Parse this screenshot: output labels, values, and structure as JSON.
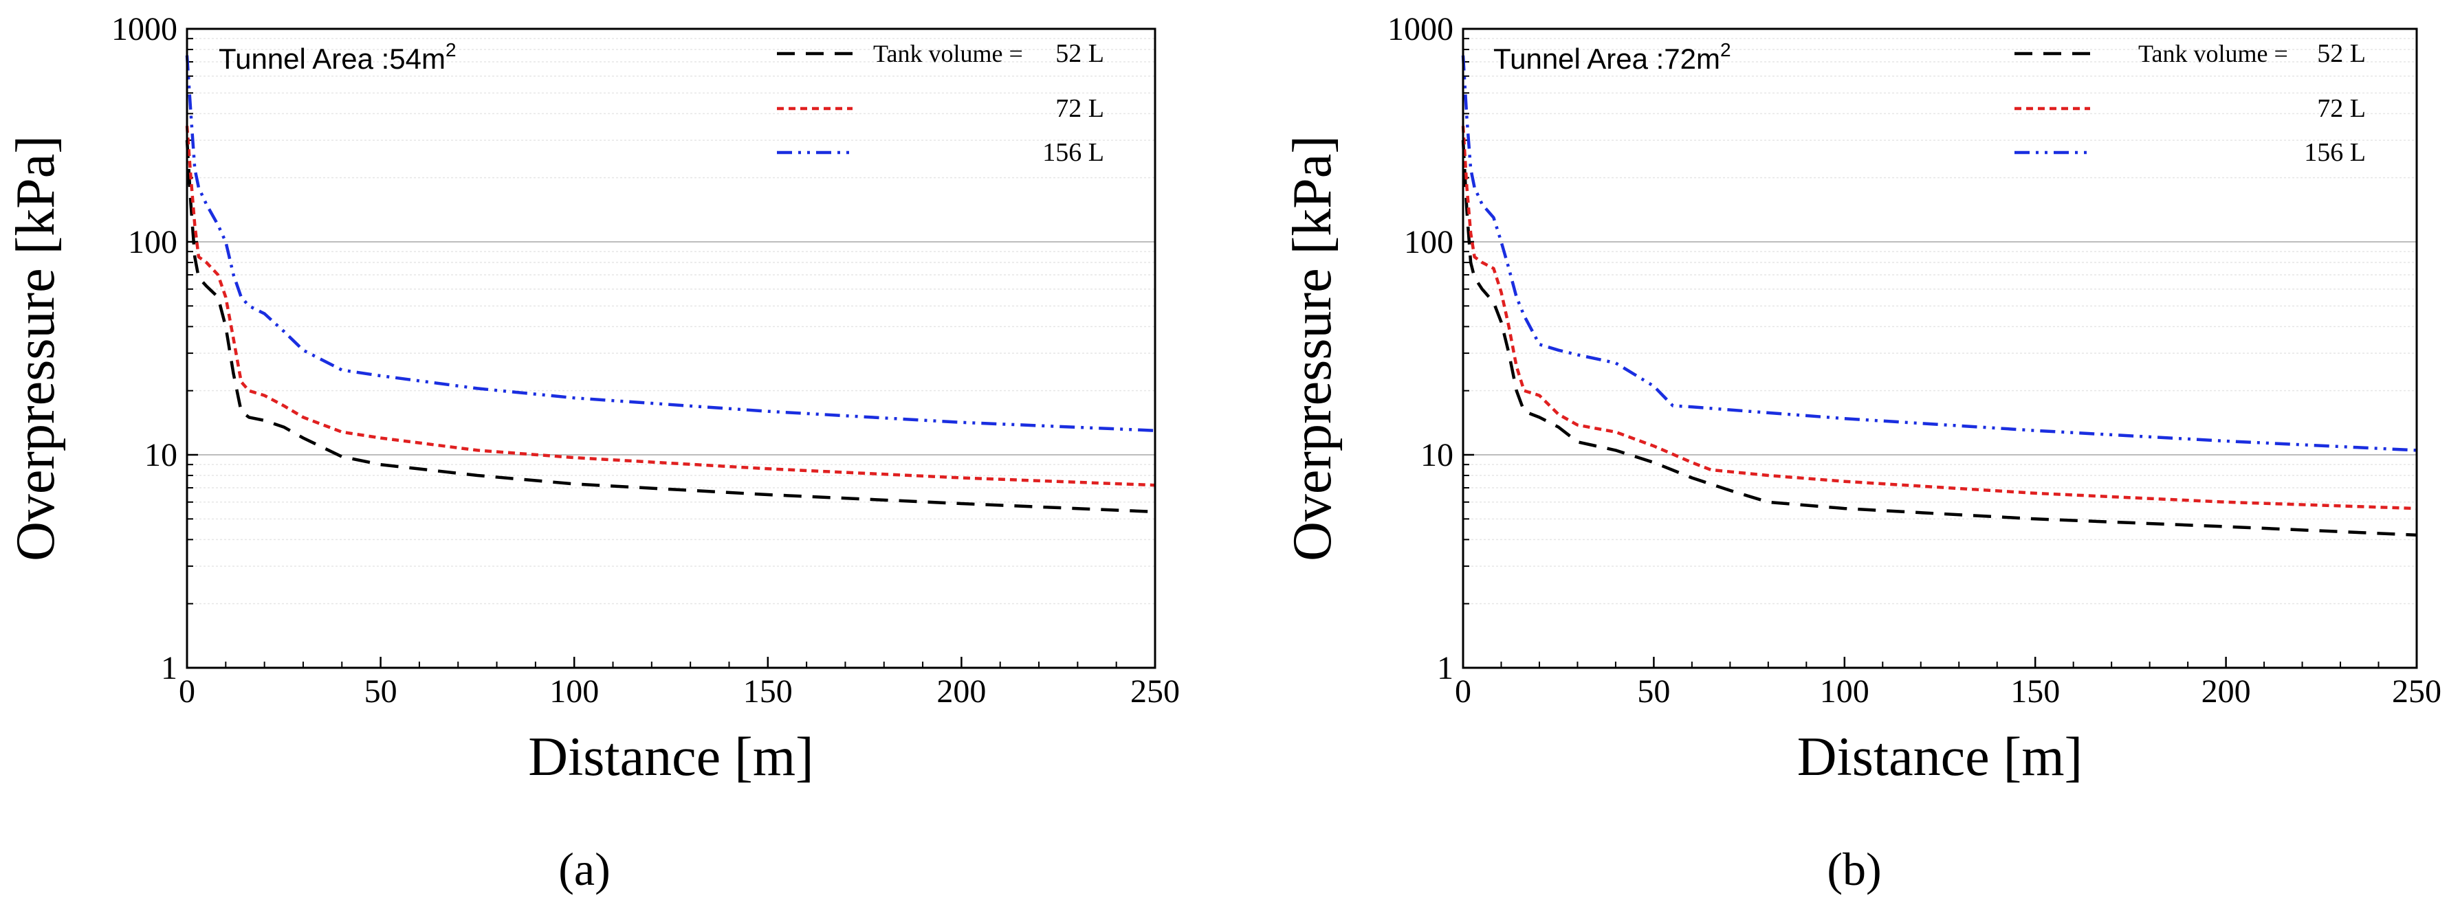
{
  "chart_data": [
    {
      "type": "line",
      "panel_label": "(a)",
      "annotation": {
        "text": "Tunnel Area :54m",
        "sup": "2"
      },
      "xlabel": "Distance [m]",
      "ylabel": "Overpressure [kPa]",
      "xlim": [
        0,
        250
      ],
      "ylim": [
        1,
        1000
      ],
      "yscale": "log",
      "xticks": [
        0,
        50,
        100,
        150,
        200,
        250
      ],
      "xtick_labels": [
        "0",
        "50",
        "100",
        "150",
        "200",
        "250"
      ],
      "yticks": [
        1,
        10,
        100,
        1000
      ],
      "ytick_labels": [
        "1",
        "10",
        "100",
        "1000"
      ],
      "grid": "horizontal",
      "legend_position": "top-right",
      "legend_title": "Tank volume =",
      "series": [
        {
          "name": "52 L",
          "color": "#000000",
          "dash": "dashed",
          "x": [
            0,
            1,
            2,
            3,
            5,
            8,
            10,
            12,
            14,
            16,
            20,
            25,
            30,
            40,
            50,
            75,
            100,
            150,
            200,
            250
          ],
          "y": [
            300,
            150,
            85,
            68,
            62,
            55,
            40,
            24,
            16,
            15,
            14.5,
            13.5,
            12,
            9.8,
            9,
            8,
            7.3,
            6.5,
            5.9,
            5.4
          ]
        },
        {
          "name": "72 L",
          "color": "#e02020",
          "dash": "dotted",
          "x": [
            0,
            1,
            2,
            3,
            5,
            8,
            10,
            12,
            14,
            16,
            20,
            25,
            30,
            40,
            50,
            75,
            100,
            150,
            200,
            250
          ],
          "y": [
            350,
            200,
            120,
            85,
            80,
            70,
            55,
            35,
            22,
            20,
            19,
            17,
            15,
            12.8,
            12,
            10.5,
            9.7,
            8.6,
            7.8,
            7.2
          ]
        },
        {
          "name": "156 L",
          "color": "#1a2ee0",
          "dash": "dashdotdot",
          "x": [
            0,
            1,
            2,
            3,
            5,
            8,
            10,
            12,
            14,
            16,
            20,
            25,
            30,
            40,
            50,
            75,
            100,
            150,
            200,
            250
          ],
          "y": [
            750,
            400,
            220,
            180,
            150,
            120,
            100,
            70,
            55,
            50,
            46,
            38,
            31,
            25,
            23.5,
            20.5,
            18.5,
            16,
            14.2,
            13
          ]
        }
      ]
    },
    {
      "type": "line",
      "panel_label": "(b)",
      "annotation": {
        "text": "Tunnel Area :72m",
        "sup": "2"
      },
      "xlabel": "Distance [m]",
      "ylabel": "Overpressure [kPa]",
      "xlim": [
        0,
        250
      ],
      "ylim": [
        1,
        1000
      ],
      "yscale": "log",
      "xticks": [
        0,
        50,
        100,
        150,
        200,
        250
      ],
      "xtick_labels": [
        "0",
        "50",
        "100",
        "150",
        "200",
        "250"
      ],
      "yticks": [
        1,
        10,
        100,
        1000
      ],
      "ytick_labels": [
        "1",
        "10",
        "100",
        "1000"
      ],
      "grid": "horizontal",
      "legend_position": "top-right",
      "legend_title": "Tank volume =",
      "series": [
        {
          "name": "52 L",
          "color": "#000000",
          "dash": "dashed",
          "x": [
            0,
            1,
            2,
            3,
            5,
            8,
            10,
            12,
            14,
            16,
            20,
            25,
            30,
            40,
            50,
            60,
            70,
            80,
            100,
            150,
            200,
            250
          ],
          "y": [
            300,
            140,
            80,
            68,
            60,
            52,
            42,
            30,
            20,
            16,
            15,
            13.5,
            11.5,
            10.5,
            9.2,
            7.8,
            6.8,
            6,
            5.6,
            5,
            4.6,
            4.2
          ]
        },
        {
          "name": "72 L",
          "color": "#e02020",
          "dash": "dotted",
          "x": [
            0,
            1,
            2,
            3,
            5,
            8,
            10,
            12,
            14,
            16,
            20,
            25,
            30,
            40,
            50,
            60,
            65,
            80,
            100,
            150,
            200,
            250
          ],
          "y": [
            350,
            180,
            110,
            85,
            80,
            75,
            58,
            40,
            26,
            20,
            19,
            15.5,
            13.8,
            12.8,
            11,
            9.2,
            8.5,
            8,
            7.5,
            6.6,
            6,
            5.6
          ]
        },
        {
          "name": "156 L",
          "color": "#1a2ee0",
          "dash": "dashdotdot",
          "x": [
            0,
            1,
            2,
            3,
            5,
            8,
            10,
            12,
            14,
            16,
            20,
            25,
            30,
            40,
            50,
            55,
            60,
            75,
            100,
            150,
            200,
            250
          ],
          "y": [
            750,
            380,
            220,
            180,
            150,
            130,
            100,
            75,
            55,
            45,
            33,
            31,
            29.5,
            27,
            21,
            17,
            16.8,
            16,
            14.8,
            13,
            11.6,
            10.5
          ]
        }
      ]
    }
  ]
}
